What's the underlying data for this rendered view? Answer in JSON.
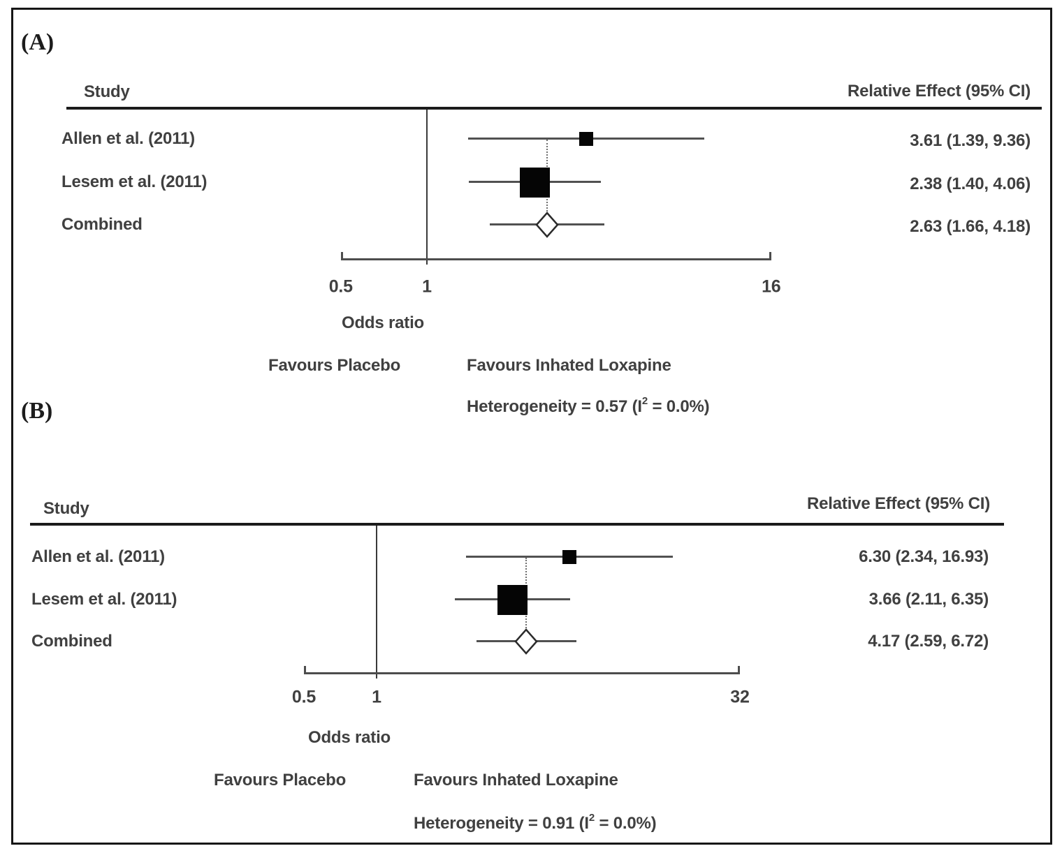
{
  "figure": {
    "frame_color": "#161616",
    "text_color": "#404040",
    "marker_color": "#050505"
  },
  "chart_data": [
    {
      "type": "forest",
      "panel_label": "(A)",
      "columns": {
        "study": "Study",
        "effect": "Relative Effect (95% CI)"
      },
      "xlabel": "Odds ratio",
      "scale": "log2",
      "xlim": [
        0.5,
        16
      ],
      "axis_ticks": [
        "0.5",
        "1",
        "16"
      ],
      "ref_line": 1,
      "favours_left": "Favours Placebo",
      "favours_right": "Favours Inhated Loxapine",
      "heterogeneity": {
        "prefix": "Heterogeneity = 0.57 (I",
        "sup": "2",
        "suffix": " = 0.0%)",
        "p": 0.57,
        "i2_pct": 0
      },
      "rows": [
        {
          "study": "Allen et al. (2011)",
          "or": 3.61,
          "ci_low": 1.39,
          "ci_high": 9.36,
          "effect_label": "3.61 (1.39, 9.36)",
          "marker": "square",
          "weight": "small"
        },
        {
          "study": "Lesem et al. (2011)",
          "or": 2.38,
          "ci_low": 1.4,
          "ci_high": 4.06,
          "effect_label": "2.38 (1.40, 4.06)",
          "marker": "square",
          "weight": "large"
        },
        {
          "study": "Combined",
          "or": 2.63,
          "ci_low": 1.66,
          "ci_high": 4.18,
          "effect_label": "2.63 (1.66, 4.18)",
          "marker": "diamond",
          "weight": "pooled"
        }
      ]
    },
    {
      "type": "forest",
      "panel_label": "(B)",
      "columns": {
        "study": "Study",
        "effect": "Relative Effect (95% CI)"
      },
      "xlabel": "Odds ratio",
      "scale": "log2",
      "xlim": [
        0.5,
        32
      ],
      "axis_ticks": [
        "0.5",
        "1",
        "32"
      ],
      "ref_line": 1,
      "favours_left": "Favours Placebo",
      "favours_right": "Favours Inhated Loxapine",
      "heterogeneity": {
        "prefix": "Heterogeneity = 0.91 (I",
        "sup": "2",
        "suffix": " = 0.0%)",
        "p": 0.91,
        "i2_pct": 0
      },
      "rows": [
        {
          "study": "Allen et al. (2011)",
          "or": 6.3,
          "ci_low": 2.34,
          "ci_high": 16.93,
          "effect_label": "6.30 (2.34, 16.93)",
          "marker": "square",
          "weight": "small"
        },
        {
          "study": "Lesem et al. (2011)",
          "or": 3.66,
          "ci_low": 2.11,
          "ci_high": 6.35,
          "effect_label": "3.66 (2.11, 6.35)",
          "marker": "square",
          "weight": "large"
        },
        {
          "study": "Combined",
          "or": 4.17,
          "ci_low": 2.59,
          "ci_high": 6.72,
          "effect_label": "4.17 (2.59, 6.72)",
          "marker": "diamond",
          "weight": "pooled"
        }
      ]
    }
  ]
}
